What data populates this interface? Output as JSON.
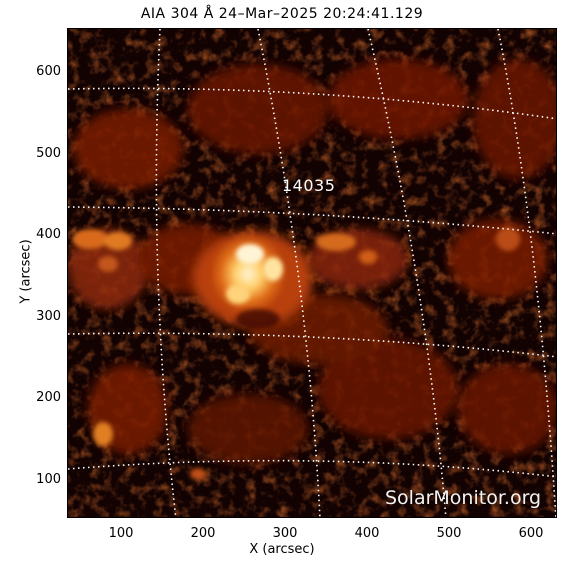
{
  "title": "AIA 304 Å 24–Mar–2025 20:24:41.129",
  "axes": {
    "xlabel": "X (arcsec)",
    "ylabel": "Y (arcsec)",
    "xticks": [
      "100",
      "200",
      "300",
      "400",
      "500",
      "600"
    ],
    "yticks": [
      "600",
      "500",
      "400",
      "300",
      "200",
      "100"
    ]
  },
  "annotations": {
    "active_region": "14035"
  },
  "watermark": "SolarMonitor.org",
  "colors": {
    "background": "#120202",
    "plasma_dark": "#5a0d05",
    "plasma_mid": "#b33a0c",
    "plasma_bright": "#ff9a2e",
    "flare_core": "#fff1c8",
    "grid": "#ffffff"
  }
}
